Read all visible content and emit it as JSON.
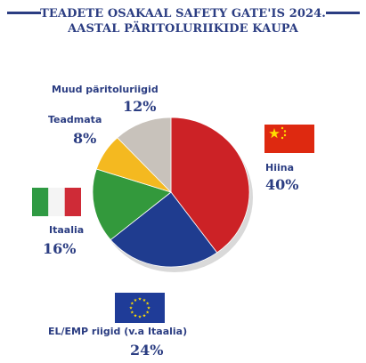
{
  "title_line1": "TEADETE OSAKAAL SAFETY GATE'IS 2024.",
  "title_line2": "AASTAL PÄRITOLURIIKIDE KAUPA",
  "colors": {
    "text": "#2b3d82",
    "china": "#cc2226",
    "eu": "#1f3c8f",
    "italy": "#33993c",
    "unknown": "#f4b920",
    "other": "#c8c2bb"
  },
  "chart_data": {
    "type": "pie",
    "title": "TEADETE OSAKAAL SAFETY GATE'IS 2024. AASTAL PÄRITOLURIIKIDE KAUPA",
    "categories": [
      "Hiina",
      "EL/EMP riigid (v.a Itaalia)",
      "Itaalia",
      "Teadmata",
      "Muud päritoluriigid"
    ],
    "values": [
      40,
      24,
      16,
      8,
      12
    ],
    "unit": "%",
    "labels": {
      "china": {
        "name": "Hiina",
        "value": "40%",
        "flag": "china-flag"
      },
      "eu": {
        "name": "EL/EMP riigid (v.a Itaalia)",
        "value": "24%",
        "flag": "eu-flag"
      },
      "italy": {
        "name": "Itaalia",
        "value": "16%",
        "flag": "italy-flag"
      },
      "unknown": {
        "name": "Teadmata",
        "value": "8%"
      },
      "other": {
        "name": "Muud päritoluriigid",
        "value": "12%"
      }
    }
  }
}
